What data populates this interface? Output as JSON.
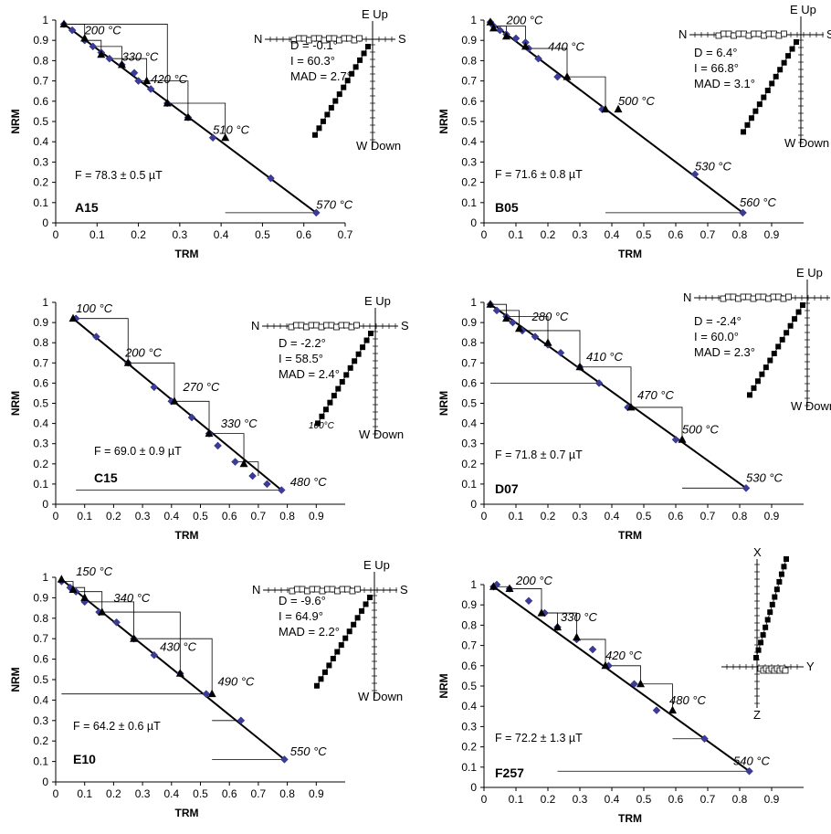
{
  "chart_data": [
    {
      "type": "scatter",
      "id": "A15",
      "xlabel": "TRM",
      "ylabel": "NRM",
      "xlim": [
        0,
        0.7
      ],
      "ylim": [
        0,
        1
      ],
      "xticks": [
        "0",
        "0.1",
        "0.2",
        "0.3",
        "0.4",
        "0.5",
        "0.6",
        "0.7"
      ],
      "yticks": [
        "0",
        "0.1",
        "0.2",
        "0.3",
        "0.4",
        "0.5",
        "0.6",
        "0.7",
        "0.8",
        "0.9",
        "1"
      ],
      "fit_label": "F = 78.3 ± 0.5 µT",
      "arai_points": [
        [
          0.02,
          0.98
        ],
        [
          0.04,
          0.95
        ],
        [
          0.07,
          0.9
        ],
        [
          0.09,
          0.87
        ],
        [
          0.11,
          0.84
        ],
        [
          0.13,
          0.81
        ],
        [
          0.16,
          0.78
        ],
        [
          0.19,
          0.74
        ],
        [
          0.2,
          0.7
        ],
        [
          0.23,
          0.66
        ],
        [
          0.27,
          0.59
        ],
        [
          0.32,
          0.52
        ],
        [
          0.38,
          0.42
        ],
        [
          0.52,
          0.22
        ],
        [
          0.63,
          0.05
        ]
      ],
      "ptrm_checks": [
        [
          0.02,
          0.98
        ],
        [
          0.07,
          0.91
        ],
        [
          0.11,
          0.83
        ],
        [
          0.16,
          0.78
        ],
        [
          0.22,
          0.7
        ],
        [
          0.27,
          0.59
        ],
        [
          0.32,
          0.52
        ],
        [
          0.41,
          0.42
        ]
      ],
      "check_lines": [
        [
          0.07,
          0.91,
          0.02
        ],
        [
          0.11,
          0.83,
          0.07
        ],
        [
          0.16,
          0.78,
          0.09
        ],
        [
          0.22,
          0.7,
          0.13
        ],
        [
          0.27,
          0.59,
          0.02
        ],
        [
          0.32,
          0.52,
          0.2
        ],
        [
          0.41,
          0.42,
          0.27
        ],
        [
          0.41,
          0.05,
          0.63
        ]
      ],
      "fit_line": [
        [
          0.02,
          0.98
        ],
        [
          0.63,
          0.05
        ]
      ],
      "temp_labels": [
        {
          "text": "200 °C",
          "x": 0.07,
          "y": 0.93
        },
        {
          "text": "330 °C",
          "x": 0.16,
          "y": 0.8
        },
        {
          "text": "420 °C",
          "x": 0.23,
          "y": 0.69
        },
        {
          "text": "510 °C",
          "x": 0.38,
          "y": 0.44
        },
        {
          "text": "570 °C",
          "x": 0.63,
          "y": 0.07
        }
      ],
      "zijder": {
        "labels": [
          "E Up",
          "N",
          "S",
          "W Down"
        ],
        "stats": [
          "D = -0.1°",
          "I = 60.3°",
          "MAD = 2.7°"
        ]
      }
    },
    {
      "type": "scatter",
      "id": "B05",
      "xlabel": "TRM",
      "ylabel": "NRM",
      "xlim": [
        0,
        1
      ],
      "ylim": [
        0,
        1
      ],
      "xticks": [
        "0",
        "0.1",
        "0.2",
        "0.3",
        "0.4",
        "0.5",
        "0.6",
        "0.7",
        "0.8",
        "0.9"
      ],
      "yticks": [
        "0",
        "0.1",
        "0.2",
        "0.3",
        "0.4",
        "0.5",
        "0.6",
        "0.7",
        "0.8",
        "0.9",
        "1"
      ],
      "fit_label": "F = 71.6 ± 0.8 µT",
      "arai_points": [
        [
          0.02,
          0.99
        ],
        [
          0.03,
          0.97
        ],
        [
          0.05,
          0.95
        ],
        [
          0.07,
          0.93
        ],
        [
          0.1,
          0.91
        ],
        [
          0.13,
          0.89
        ],
        [
          0.14,
          0.86
        ],
        [
          0.17,
          0.81
        ],
        [
          0.23,
          0.72
        ],
        [
          0.37,
          0.56
        ],
        [
          0.66,
          0.24
        ],
        [
          0.81,
          0.05
        ]
      ],
      "ptrm_checks": [
        [
          0.02,
          0.99
        ],
        [
          0.03,
          0.96
        ],
        [
          0.07,
          0.92
        ],
        [
          0.13,
          0.87
        ],
        [
          0.26,
          0.72
        ],
        [
          0.38,
          0.56
        ],
        [
          0.42,
          0.56
        ]
      ],
      "check_lines": [
        [
          0.03,
          0.96,
          0.02
        ],
        [
          0.07,
          0.92,
          0.03
        ],
        [
          0.13,
          0.87,
          0.03
        ],
        [
          0.26,
          0.72,
          0.14
        ],
        [
          0.38,
          0.56,
          0.26
        ],
        [
          0.42,
          0.56,
          0.42
        ],
        [
          0.38,
          0.05,
          0.81
        ]
      ],
      "fit_line": [
        [
          0.02,
          0.99
        ],
        [
          0.81,
          0.05
        ]
      ],
      "temp_labels": [
        {
          "text": "200 °C",
          "x": 0.07,
          "y": 0.98
        },
        {
          "text": "440 °C",
          "x": 0.2,
          "y": 0.85
        },
        {
          "text": "500 °C",
          "x": 0.42,
          "y": 0.58
        },
        {
          "text": "530 °C",
          "x": 0.66,
          "y": 0.26
        },
        {
          "text": "560 °C",
          "x": 0.8,
          "y": 0.08
        }
      ],
      "zijder": {
        "labels": [
          "E Up",
          "N",
          "S",
          "W Down"
        ],
        "stats": [
          "D = 6.4°",
          "I = 66.8°",
          "MAD = 3.1°"
        ]
      }
    },
    {
      "type": "scatter",
      "id": "C15",
      "xlabel": "TRM",
      "ylabel": "NRM",
      "xlim": [
        0,
        1
      ],
      "ylim": [
        0,
        1
      ],
      "xticks": [
        "0",
        "0.1",
        "0.2",
        "0.3",
        "0.4",
        "0.5",
        "0.6",
        "0.7",
        "0.8",
        "0.9"
      ],
      "yticks": [
        "0",
        "0.1",
        "0.2",
        "0.3",
        "0.4",
        "0.5",
        "0.6",
        "0.7",
        "0.8",
        "0.9",
        "1"
      ],
      "fit_label": "F = 69.0 ± 0.9 µT",
      "arai_points": [
        [
          0.07,
          0.92
        ],
        [
          0.14,
          0.83
        ],
        [
          0.25,
          0.7
        ],
        [
          0.34,
          0.58
        ],
        [
          0.4,
          0.51
        ],
        [
          0.47,
          0.43
        ],
        [
          0.53,
          0.35
        ],
        [
          0.56,
          0.29
        ],
        [
          0.62,
          0.21
        ],
        [
          0.68,
          0.14
        ],
        [
          0.73,
          0.1
        ],
        [
          0.78,
          0.07
        ]
      ],
      "ptrm_checks": [
        [
          0.06,
          0.92
        ],
        [
          0.25,
          0.7
        ],
        [
          0.41,
          0.51
        ],
        [
          0.53,
          0.35
        ],
        [
          0.65,
          0.2
        ]
      ],
      "check_lines": [
        [
          0.25,
          0.7,
          0.07
        ],
        [
          0.41,
          0.51,
          0.25
        ],
        [
          0.53,
          0.35,
          0.41
        ],
        [
          0.65,
          0.2,
          0.53
        ],
        [
          0.7,
          0.14,
          0.62
        ],
        [
          0.07,
          0.07,
          0.78
        ]
      ],
      "fit_line": [
        [
          0.06,
          0.92
        ],
        [
          0.78,
          0.07
        ]
      ],
      "temp_labels": [
        {
          "text": "100 °C",
          "x": 0.07,
          "y": 0.95
        },
        {
          "text": "200 °C",
          "x": 0.24,
          "y": 0.73
        },
        {
          "text": "270 °C",
          "x": 0.44,
          "y": 0.56
        },
        {
          "text": "330 °C",
          "x": 0.57,
          "y": 0.38
        },
        {
          "text": "480 °C",
          "x": 0.81,
          "y": 0.09
        }
      ],
      "zijder": {
        "labels": [
          "E Up",
          "N",
          "S",
          "W Down",
          "100°C"
        ],
        "stats": [
          "D = -2.2°",
          "I = 58.5°",
          "MAD = 2.4°"
        ]
      }
    },
    {
      "type": "scatter",
      "id": "D07",
      "xlabel": "TRM",
      "ylabel": "NRM",
      "xlim": [
        0,
        1
      ],
      "ylim": [
        0,
        1
      ],
      "xticks": [
        "0",
        "0.1",
        "0.2",
        "0.3",
        "0.4",
        "0.5",
        "0.6",
        "0.7",
        "0.8",
        "0.9"
      ],
      "yticks": [
        "0",
        "0.1",
        "0.2",
        "0.3",
        "0.4",
        "0.5",
        "0.6",
        "0.7",
        "0.8",
        "0.9",
        "1"
      ],
      "fit_label": "F = 71.8 ± 0.7 µT",
      "arai_points": [
        [
          0.02,
          0.99
        ],
        [
          0.04,
          0.96
        ],
        [
          0.07,
          0.93
        ],
        [
          0.09,
          0.9
        ],
        [
          0.12,
          0.86
        ],
        [
          0.16,
          0.83
        ],
        [
          0.2,
          0.79
        ],
        [
          0.24,
          0.75
        ],
        [
          0.3,
          0.68
        ],
        [
          0.36,
          0.6
        ],
        [
          0.45,
          0.48
        ],
        [
          0.6,
          0.32
        ],
        [
          0.82,
          0.08
        ]
      ],
      "ptrm_checks": [
        [
          0.02,
          0.99
        ],
        [
          0.07,
          0.92
        ],
        [
          0.11,
          0.87
        ],
        [
          0.2,
          0.8
        ],
        [
          0.3,
          0.68
        ],
        [
          0.46,
          0.48
        ],
        [
          0.62,
          0.32
        ]
      ],
      "check_lines": [
        [
          0.07,
          0.92,
          0.02
        ],
        [
          0.11,
          0.87,
          0.04
        ],
        [
          0.2,
          0.8,
          0.07
        ],
        [
          0.3,
          0.68,
          0.12
        ],
        [
          0.46,
          0.48,
          0.3
        ],
        [
          0.62,
          0.32,
          0.46
        ],
        [
          0.62,
          0.08,
          0.82
        ],
        [
          0.02,
          0.6,
          0.36
        ]
      ],
      "fit_line": [
        [
          0.02,
          0.99
        ],
        [
          0.82,
          0.08
        ]
      ],
      "temp_labels": [
        {
          "text": "280 °C",
          "x": 0.15,
          "y": 0.91
        },
        {
          "text": "410 °C",
          "x": 0.32,
          "y": 0.71
        },
        {
          "text": "470 °C",
          "x": 0.48,
          "y": 0.52
        },
        {
          "text": "500 °C",
          "x": 0.62,
          "y": 0.35
        },
        {
          "text": "530 °C",
          "x": 0.82,
          "y": 0.11
        }
      ],
      "zijder": {
        "labels": [
          "E Up",
          "N",
          "S",
          "W Down"
        ],
        "stats": [
          "D = -2.4°",
          "I = 60.0°",
          "MAD = 2.3°"
        ]
      }
    },
    {
      "type": "scatter",
      "id": "E10",
      "xlabel": "TRM",
      "ylabel": "NRM",
      "xlim": [
        0,
        1
      ],
      "ylim": [
        0,
        1
      ],
      "xticks": [
        "0",
        "0.1",
        "0.2",
        "0.3",
        "0.4",
        "0.5",
        "0.6",
        "0.7",
        "0.8",
        "0.9"
      ],
      "yticks": [
        "0",
        "0.1",
        "0.2",
        "0.3",
        "0.4",
        "0.5",
        "0.6",
        "0.7",
        "0.8",
        "0.9",
        "1"
      ],
      "fit_label": "F = 64.2 ± 0.6 µT",
      "arai_points": [
        [
          0.02,
          0.98
        ],
        [
          0.05,
          0.95
        ],
        [
          0.07,
          0.93
        ],
        [
          0.1,
          0.88
        ],
        [
          0.15,
          0.83
        ],
        [
          0.21,
          0.78
        ],
        [
          0.27,
          0.7
        ],
        [
          0.34,
          0.62
        ],
        [
          0.43,
          0.53
        ],
        [
          0.52,
          0.43
        ],
        [
          0.64,
          0.3
        ],
        [
          0.79,
          0.11
        ]
      ],
      "ptrm_checks": [
        [
          0.02,
          0.99
        ],
        [
          0.06,
          0.94
        ],
        [
          0.1,
          0.9
        ],
        [
          0.16,
          0.83
        ],
        [
          0.27,
          0.7
        ],
        [
          0.43,
          0.53
        ],
        [
          0.54,
          0.43
        ]
      ],
      "check_lines": [
        [
          0.06,
          0.94,
          0.02
        ],
        [
          0.1,
          0.9,
          0.05
        ],
        [
          0.16,
          0.83,
          0.07
        ],
        [
          0.27,
          0.7,
          0.1
        ],
        [
          0.43,
          0.53,
          0.15
        ],
        [
          0.54,
          0.43,
          0.27
        ],
        [
          0.54,
          0.3,
          0.64
        ],
        [
          0.02,
          0.43,
          0.52
        ],
        [
          0.54,
          0.11,
          0.79
        ]
      ],
      "fit_line": [
        [
          0.02,
          0.99
        ],
        [
          0.79,
          0.11
        ]
      ],
      "temp_labels": [
        {
          "text": "150 °C",
          "x": 0.07,
          "y": 1.01
        },
        {
          "text": "340 °C",
          "x": 0.2,
          "y": 0.88
        },
        {
          "text": "430 °C",
          "x": 0.36,
          "y": 0.64
        },
        {
          "text": "490 °C",
          "x": 0.56,
          "y": 0.47
        },
        {
          "text": "550 °C",
          "x": 0.81,
          "y": 0.13
        }
      ],
      "zijder": {
        "labels": [
          "E Up",
          "N",
          "S",
          "W Down"
        ],
        "stats": [
          "D = -9.6°",
          "I = 64.9°",
          "MAD = 2.2°"
        ]
      }
    },
    {
      "type": "scatter",
      "id": "F257",
      "xlabel": "TRM",
      "ylabel": "NRM",
      "xlim": [
        0,
        1
      ],
      "ylim": [
        0,
        1
      ],
      "xticks": [
        "0",
        "0.1",
        "0.2",
        "0.3",
        "0.4",
        "0.5",
        "0.6",
        "0.7",
        "0.8",
        "0.9"
      ],
      "yticks": [
        "0",
        "0.1",
        "0.2",
        "0.3",
        "0.4",
        "0.5",
        "0.6",
        "0.7",
        "0.8",
        "0.9",
        "1"
      ],
      "fit_label": "F = 72.2 ± 1.3 µT",
      "arai_points": [
        [
          0.03,
          0.99
        ],
        [
          0.04,
          1.0
        ],
        [
          0.08,
          0.98
        ],
        [
          0.14,
          0.92
        ],
        [
          0.19,
          0.86
        ],
        [
          0.23,
          0.79
        ],
        [
          0.29,
          0.73
        ],
        [
          0.34,
          0.68
        ],
        [
          0.39,
          0.6
        ],
        [
          0.47,
          0.51
        ],
        [
          0.54,
          0.38
        ],
        [
          0.69,
          0.24
        ],
        [
          0.83,
          0.08
        ]
      ],
      "ptrm_checks": [
        [
          0.03,
          0.99
        ],
        [
          0.08,
          0.98
        ],
        [
          0.18,
          0.86
        ],
        [
          0.23,
          0.79
        ],
        [
          0.29,
          0.74
        ],
        [
          0.38,
          0.6
        ],
        [
          0.49,
          0.51
        ],
        [
          0.59,
          0.38
        ]
      ],
      "check_lines": [
        [
          0.08,
          0.98,
          0.03
        ],
        [
          0.18,
          0.86,
          0.08
        ],
        [
          0.23,
          0.79,
          0.19
        ],
        [
          0.29,
          0.74,
          0.19
        ],
        [
          0.38,
          0.6,
          0.29
        ],
        [
          0.49,
          0.51,
          0.38
        ],
        [
          0.59,
          0.38,
          0.49
        ],
        [
          0.59,
          0.24,
          0.69
        ],
        [
          0.23,
          0.08,
          0.83
        ]
      ],
      "fit_line": [
        [
          0.03,
          0.99
        ],
        [
          0.83,
          0.08
        ]
      ],
      "temp_labels": [
        {
          "text": "200 °C",
          "x": 0.1,
          "y": 1.0
        },
        {
          "text": "330 °C",
          "x": 0.24,
          "y": 0.82
        },
        {
          "text": "420 °C",
          "x": 0.38,
          "y": 0.63
        },
        {
          "text": "480 °C",
          "x": 0.58,
          "y": 0.41
        },
        {
          "text": "540 °C",
          "x": 0.78,
          "y": 0.11
        }
      ],
      "zijder": {
        "labels": [
          "X",
          "Y",
          "Z"
        ],
        "stats": []
      }
    }
  ]
}
